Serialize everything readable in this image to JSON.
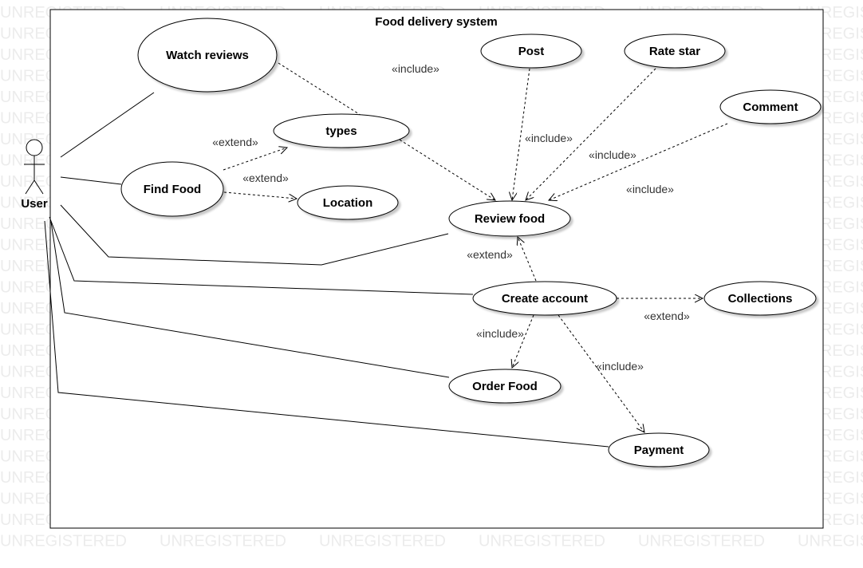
{
  "diagram": {
    "title": "Food delivery system",
    "watermark": "UNREGISTERED",
    "actor": {
      "name": "User"
    },
    "use_cases": {
      "watch_reviews": "Watch reviews",
      "post": "Post",
      "rate_star": "Rate star",
      "comment": "Comment",
      "types": "types",
      "find_food": "Find Food",
      "location": "Location",
      "review_food": "Review food",
      "create_account": "Create account",
      "collections": "Collections",
      "order_food": "Order Food",
      "payment": "Payment"
    },
    "relations": {
      "watch_include": "«include»",
      "post_include": "«include»",
      "rate_include": "«include»",
      "comment_include": "«include»",
      "types_extend": "«extend»",
      "location_extend": "«extend»",
      "review_extend": "«extend»",
      "collections_extend": "«extend»",
      "order_include": "«include»",
      "payment_include": "«include»"
    }
  }
}
